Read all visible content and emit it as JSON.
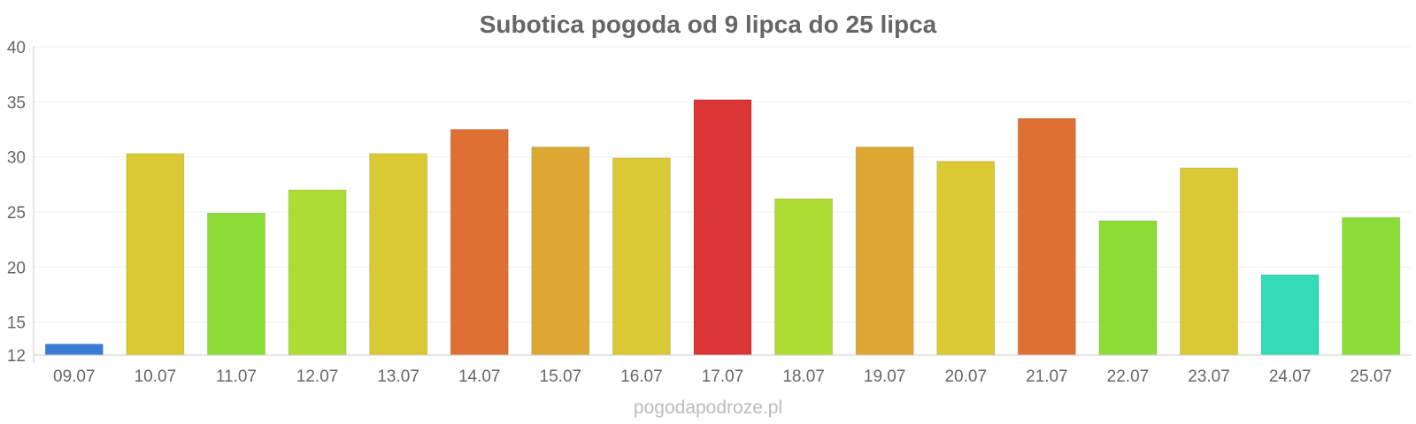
{
  "footer": "pogodapodroze.pl",
  "chart_data": {
    "type": "bar",
    "title": "Subotica pogoda od 9 lipca do 25 lipca",
    "xlabel": "",
    "ylabel": "",
    "ylim": [
      12,
      40
    ],
    "yticks": [
      12,
      15,
      20,
      25,
      30,
      35,
      40
    ],
    "grid": true,
    "categories": [
      "09.07",
      "10.07",
      "11.07",
      "12.07",
      "13.07",
      "14.07",
      "15.07",
      "16.07",
      "17.07",
      "18.07",
      "19.07",
      "20.07",
      "21.07",
      "22.07",
      "23.07",
      "24.07",
      "25.07"
    ],
    "values": [
      13,
      30.3,
      24.9,
      27,
      30.3,
      32.5,
      30.9,
      29.9,
      35.2,
      26.2,
      30.9,
      29.6,
      33.5,
      24.2,
      29,
      19.3,
      24.5
    ],
    "colors": [
      "#3a7bd5",
      "#dbc933",
      "#8bdc36",
      "#addc33",
      "#dbc933",
      "#de7033",
      "#dca833",
      "#dbc933",
      "#db3535",
      "#addc33",
      "#dca833",
      "#dbc933",
      "#de7033",
      "#8bdc36",
      "#dbc933",
      "#35dcb8",
      "#8bdc36"
    ]
  }
}
